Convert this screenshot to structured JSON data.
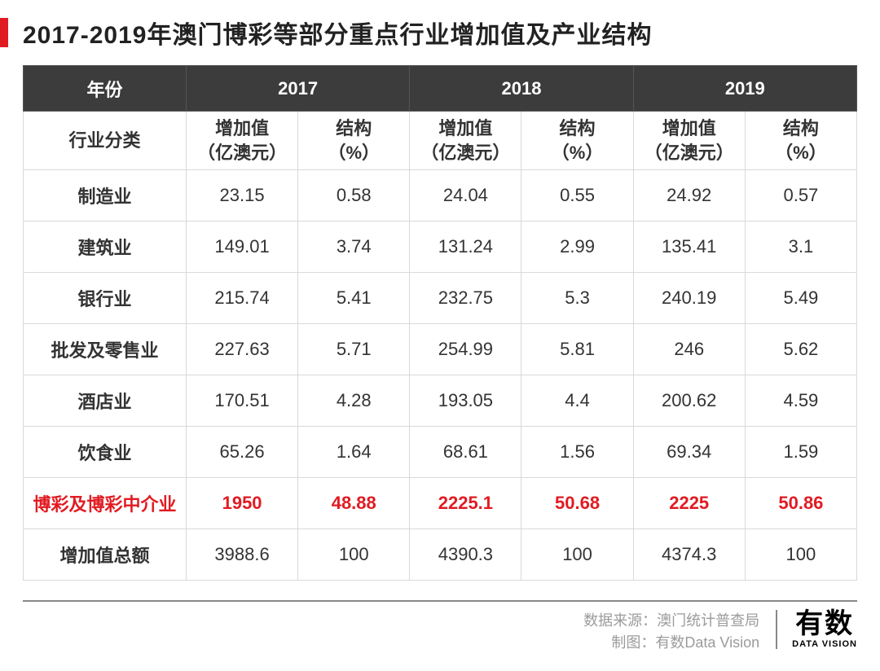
{
  "title": "2017-2019年澳门博彩等部分重点行业增加值及产业结构",
  "table": {
    "year_header_label": "年份",
    "years": [
      "2017",
      "2018",
      "2019"
    ],
    "category_header": "行业分类",
    "sub_headers": {
      "value_label": "增加值\n（亿澳元）",
      "pct_label": "结构\n（%）"
    },
    "header_bg": "#3c3c3c",
    "header_fg": "#ffffff",
    "border_color": "#d9d9d9",
    "highlight_color": "#e11b22",
    "rows": [
      {
        "name": "制造业",
        "2017": [
          "23.15",
          "0.58"
        ],
        "2018": [
          "24.04",
          "0.55"
        ],
        "2019": [
          "24.92",
          "0.57"
        ],
        "highlight": false
      },
      {
        "name": "建筑业",
        "2017": [
          "149.01",
          "3.74"
        ],
        "2018": [
          "131.24",
          "2.99"
        ],
        "2019": [
          "135.41",
          "3.1"
        ],
        "highlight": false
      },
      {
        "name": "银行业",
        "2017": [
          "215.74",
          "5.41"
        ],
        "2018": [
          "232.75",
          "5.3"
        ],
        "2019": [
          "240.19",
          "5.49"
        ],
        "highlight": false
      },
      {
        "name": "批发及零售业",
        "2017": [
          "227.63",
          "5.71"
        ],
        "2018": [
          "254.99",
          "5.81"
        ],
        "2019": [
          "246",
          "5.62"
        ],
        "highlight": false
      },
      {
        "name": "酒店业",
        "2017": [
          "170.51",
          "4.28"
        ],
        "2018": [
          "193.05",
          "4.4"
        ],
        "2019": [
          "200.62",
          "4.59"
        ],
        "highlight": false
      },
      {
        "name": "饮食业",
        "2017": [
          "65.26",
          "1.64"
        ],
        "2018": [
          "68.61",
          "1.56"
        ],
        "2019": [
          "69.34",
          "1.59"
        ],
        "highlight": false
      },
      {
        "name": "博彩及博彩中介业",
        "2017": [
          "1950",
          "48.88"
        ],
        "2018": [
          "2225.1",
          "50.68"
        ],
        "2019": [
          "2225",
          "50.86"
        ],
        "highlight": true
      },
      {
        "name": "增加值总额",
        "2017": [
          "3988.6",
          "100"
        ],
        "2018": [
          "4390.3",
          "100"
        ],
        "2019": [
          "4374.3",
          "100"
        ],
        "highlight": false
      }
    ]
  },
  "footer": {
    "source_label": "数据来源：澳门统计普查局",
    "credit_label": "制图：有数Data Vision",
    "logo_cn": "有数",
    "logo_en": "DATA VISION"
  },
  "colors": {
    "accent": "#e11b22",
    "text": "#333333",
    "muted": "#9b9b9b",
    "divider": "#888888",
    "bg": "#ffffff"
  }
}
